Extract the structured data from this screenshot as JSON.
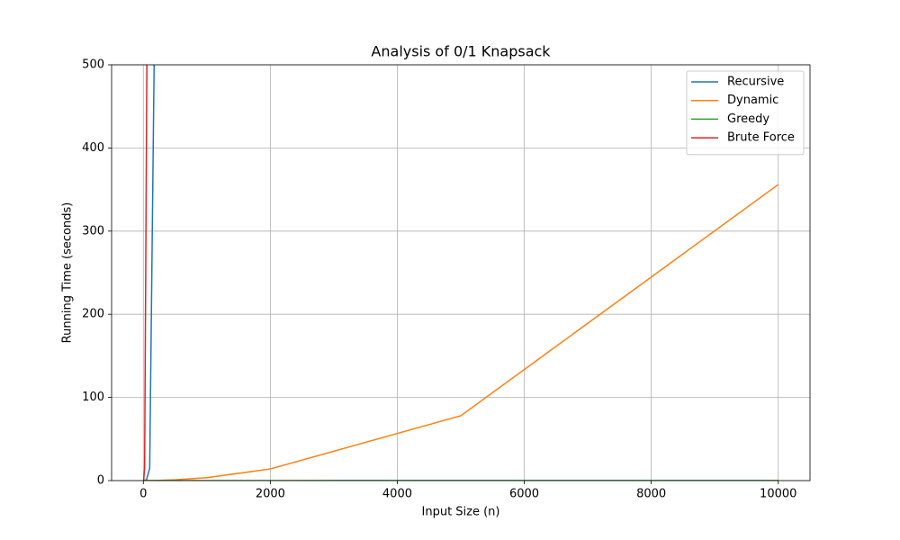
{
  "chart_data": {
    "type": "line",
    "title": "Analysis of 0/1 Knapsack",
    "x_label": "Input Size (n)",
    "y_label": "Running Time (seconds)",
    "xlim": [
      -500,
      10500
    ],
    "ylim": [
      0,
      500
    ],
    "xticks": [
      0,
      2000,
      4000,
      6000,
      8000,
      10000
    ],
    "yticks": [
      0,
      100,
      200,
      300,
      400,
      500
    ],
    "grid": true,
    "legend": "upper right",
    "series": [
      {
        "name": "Recursive",
        "color": "#1f77b4",
        "x": [
          10,
          50,
          100,
          200
        ],
        "values": [
          0,
          1,
          15,
          710
        ]
      },
      {
        "name": "Dynamic",
        "color": "#ff7f0e",
        "x": [
          10,
          50,
          100,
          200,
          500,
          1000,
          2000,
          5000,
          10000
        ],
        "values": [
          0,
          0,
          0.05,
          0.2,
          0.9,
          3.5,
          14,
          78,
          356
        ]
      },
      {
        "name": "Greedy",
        "color": "#2ca02c",
        "x": [
          10,
          50,
          100,
          200,
          500,
          1000,
          2000,
          5000,
          10000
        ],
        "values": [
          0,
          0,
          0,
          0,
          0.01,
          0.02,
          0.05,
          0.1,
          0.2
        ]
      },
      {
        "name": "Brute Force",
        "color": "#d62728",
        "x": [
          5,
          20,
          60
        ],
        "values": [
          0,
          15,
          560
        ]
      }
    ]
  }
}
